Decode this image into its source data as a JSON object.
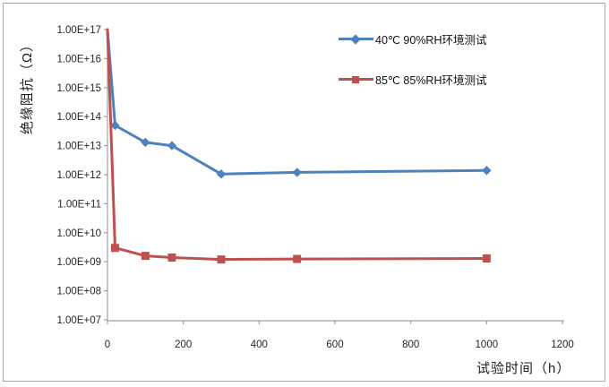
{
  "chart_data": {
    "type": "line",
    "title": "",
    "xlabel": "试验时间（h）",
    "ylabel": "绝缘阻抗（Ω）",
    "xlim": [
      0,
      1200
    ],
    "xticks": [
      0,
      200,
      400,
      600,
      800,
      1000,
      1200
    ],
    "xtick_labels": [
      "0",
      "200",
      "400",
      "600",
      "800",
      "1000",
      "1200"
    ],
    "y_scale": "log",
    "ylim_exponents": [
      7,
      17
    ],
    "ytick_labels": [
      "1.00E+17",
      "1.00E+16",
      "1.00E+15",
      "1.00E+14",
      "1.00E+13",
      "1.00E+12",
      "1.00E+11",
      "1.00E+10",
      "1.00E+09",
      "1.00E+08",
      "1.00E+07"
    ],
    "grid": false,
    "legend_position": "inside-top-right",
    "series": [
      {
        "name": "40℃ 90%RH环境测试",
        "color": "#4F81BD",
        "marker": "diamond",
        "x": [
          0,
          20,
          100,
          170,
          300,
          500,
          1000
        ],
        "y": [
          1e+17,
          50000000000000.0,
          13000000000000.0,
          10000000000000.0,
          1050000000000.0,
          1200000000000.0,
          1400000000000.0
        ]
      },
      {
        "name": "85℃ 85%RH环境测试",
        "color": "#C0504D",
        "marker": "square",
        "x": [
          0,
          20,
          100,
          170,
          300,
          500,
          1000
        ],
        "y": [
          1e+17,
          3000000000.0,
          1600000000.0,
          1400000000.0,
          1200000000.0,
          1250000000.0,
          1300000000.0
        ]
      }
    ]
  },
  "style_colors": {
    "axis_line": "#a0a0a0",
    "tick_text": "#262626",
    "frame_border": "#a9a9a9"
  }
}
